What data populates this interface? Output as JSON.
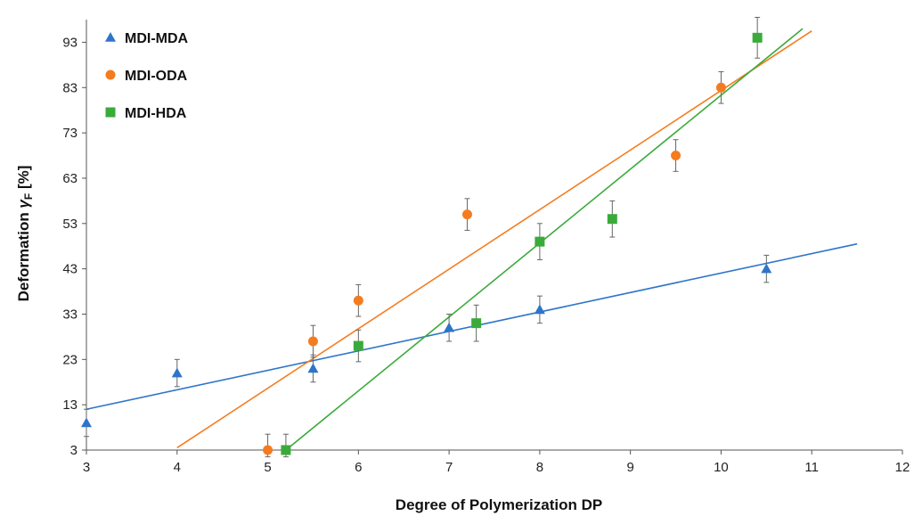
{
  "chart_data": {
    "type": "scatter",
    "xlabel": "Degree of Polymerization DP",
    "ylabel_main": "Deformation ",
    "ylabel_symbol": "γ",
    "ylabel_sub": "F",
    "ylabel_unit": " [%]",
    "xlim": [
      3,
      12
    ],
    "ylim": [
      3,
      98
    ],
    "x_ticks": [
      3,
      4,
      5,
      6,
      7,
      8,
      9,
      10,
      11,
      12
    ],
    "y_ticks": [
      3,
      13,
      23,
      33,
      43,
      53,
      63,
      73,
      83,
      93
    ],
    "grid": false,
    "legend_position": "top-left",
    "series": [
      {
        "name": "MDI-MDA",
        "marker": "triangle",
        "color": "#2e75c9",
        "points": [
          {
            "x": 3,
            "y": 9,
            "err": 3
          },
          {
            "x": 4,
            "y": 20,
            "err": 3
          },
          {
            "x": 5.5,
            "y": 21,
            "err": 3
          },
          {
            "x": 7,
            "y": 30,
            "err": 3
          },
          {
            "x": 8,
            "y": 34,
            "err": 3
          },
          {
            "x": 10.5,
            "y": 43,
            "err": 3
          }
        ],
        "trend": [
          [
            3,
            12
          ],
          [
            11.5,
            48.5
          ]
        ]
      },
      {
        "name": "MDI-ODA",
        "marker": "circle",
        "color": "#f47c20",
        "points": [
          {
            "x": 5,
            "y": 3,
            "err": 3.5
          },
          {
            "x": 5.5,
            "y": 27,
            "err": 3.5
          },
          {
            "x": 6,
            "y": 36,
            "err": 3.5
          },
          {
            "x": 7.2,
            "y": 55,
            "err": 3.5
          },
          {
            "x": 9.5,
            "y": 68,
            "err": 3.5
          },
          {
            "x": 10,
            "y": 83,
            "err": 3.5
          }
        ],
        "trend": [
          [
            4,
            3.5
          ],
          [
            11,
            95.5
          ]
        ]
      },
      {
        "name": "MDI-HDA",
        "marker": "square",
        "color": "#3aab3a",
        "points": [
          {
            "x": 5.2,
            "y": 3,
            "err": 3.5
          },
          {
            "x": 6,
            "y": 26,
            "err": 3.5
          },
          {
            "x": 7.3,
            "y": 31,
            "err": 4
          },
          {
            "x": 8,
            "y": 49,
            "err": 4
          },
          {
            "x": 8.8,
            "y": 54,
            "err": 4
          },
          {
            "x": 10.4,
            "y": 94,
            "err": 4.5
          }
        ],
        "trend": [
          [
            5.2,
            3
          ],
          [
            10.9,
            96
          ]
        ]
      }
    ]
  }
}
